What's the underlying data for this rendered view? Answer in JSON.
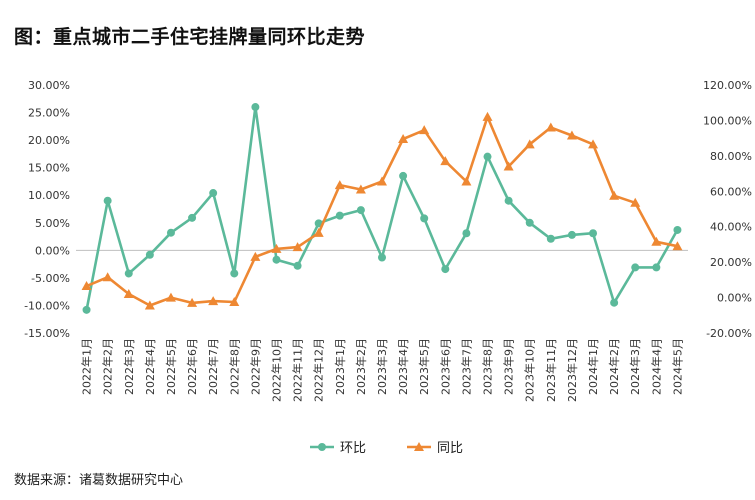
{
  "title": "图：重点城市二手住宅挂牌量同环比走势",
  "source": "数据来源：诸葛数据研究中心",
  "chart_data": {
    "type": "line",
    "title": "图：重点城市二手住宅挂牌量同环比走势",
    "categories": [
      "2022年1月",
      "2022年2月",
      "2022年3月",
      "2022年4月",
      "2022年5月",
      "2022年6月",
      "2022年7月",
      "2022年8月",
      "2022年9月",
      "2022年10月",
      "2022年11月",
      "2022年12月",
      "2023年1月",
      "2023年2月",
      "2023年3月",
      "2023年4月",
      "2023年5月",
      "2023年6月",
      "2023年7月",
      "2023年8月",
      "2023年9月",
      "2023年10月",
      "2023年11月",
      "2023年12月",
      "2024年1月",
      "2024年2月",
      "2024年3月",
      "2024年4月",
      "2024年5月"
    ],
    "left_axis": {
      "ylim": [
        -15,
        30
      ],
      "ticks": [
        "30.00%",
        "25.00%",
        "20.00%",
        "15.00%",
        "10.00%",
        "5.00%",
        "0.00%",
        "-5.00%",
        "-10.00%",
        "-15.00%"
      ]
    },
    "right_axis": {
      "ylim": [
        -20,
        120
      ],
      "ticks": [
        "120.00%",
        "100.00%",
        "80.00%",
        "60.00%",
        "40.00%",
        "20.00%",
        "0.00%",
        "-20.00%"
      ]
    },
    "series": [
      {
        "name": "环比",
        "axis": "left",
        "color": "#5BB99A",
        "marker": "circle",
        "values": [
          -10.8,
          9.0,
          -4.2,
          -0.8,
          3.2,
          5.9,
          10.4,
          -4.2,
          26.0,
          -1.7,
          -2.8,
          4.9,
          6.3,
          7.3,
          -1.3,
          13.5,
          5.8,
          -3.4,
          3.1,
          17.0,
          9.0,
          5.0,
          2.1,
          2.8,
          3.1,
          -9.5,
          -3.1,
          -3.1,
          3.7
        ]
      },
      {
        "name": "同比",
        "axis": "right",
        "color": "#EE8833",
        "marker": "triangle",
        "values": [
          6.5,
          11.5,
          2.0,
          -4.5,
          0.0,
          -3.0,
          -2.0,
          -2.5,
          23.0,
          27.5,
          28.5,
          36.5,
          63.5,
          61.0,
          65.5,
          89.5,
          94.5,
          77.0,
          65.5,
          102.0,
          74.0,
          86.5,
          96.0,
          91.5,
          86.5,
          57.5,
          53.5,
          31.5,
          29.0
        ]
      }
    ],
    "legend": {
      "position": "bottom"
    },
    "grid": false
  }
}
